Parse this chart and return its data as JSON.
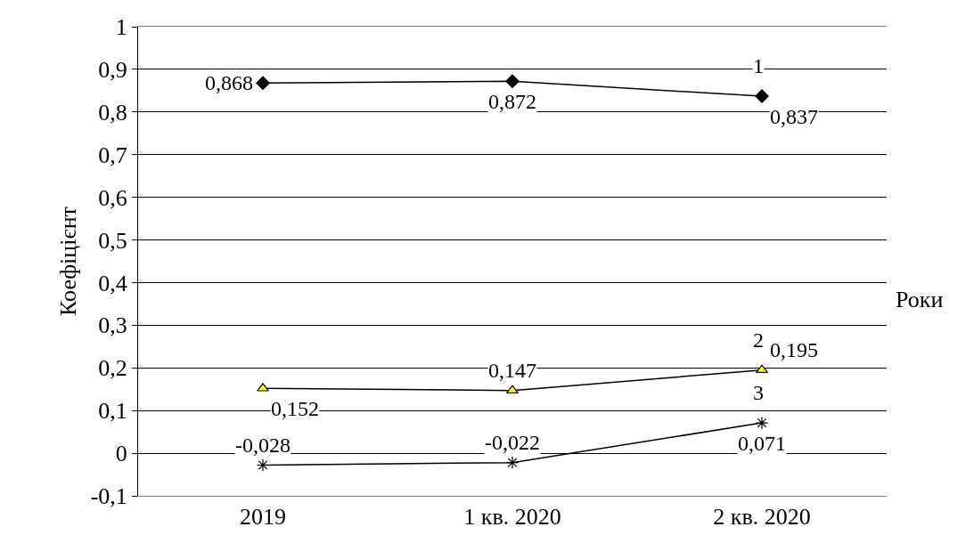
{
  "chart_data": {
    "type": "line",
    "ylabel": "Коефіцієнт",
    "xlabel": "Роки",
    "categories": [
      "2019",
      "1 кв. 2020",
      "2 кв. 2020"
    ],
    "series": [
      {
        "name": "1",
        "color": "#000000",
        "marker": "diamond",
        "values": [
          0.868,
          0.872,
          0.837
        ],
        "value_labels": [
          "0,868",
          "0,872",
          "0,837"
        ]
      },
      {
        "name": "2",
        "color": "#ffff00",
        "marker": "triangle",
        "values": [
          0.152,
          0.147,
          0.195
        ],
        "value_labels": [
          "0,152",
          "0,147",
          "0,195"
        ]
      },
      {
        "name": "3",
        "color": "#000000",
        "marker": "cross",
        "values": [
          -0.028,
          -0.022,
          0.071
        ],
        "value_labels": [
          "-0,028",
          "-0,022",
          "0,071"
        ]
      }
    ],
    "ylim": [
      -0.1,
      1
    ],
    "yticks": [
      {
        "value": -0.1,
        "label": "-0,1"
      },
      0,
      {
        "value": 0.1,
        "label": "0,1"
      },
      {
        "value": 0.2,
        "label": "0,2"
      },
      {
        "value": 0.3,
        "label": "0,3"
      },
      {
        "value": 0.4,
        "label": "0,4"
      },
      {
        "value": 0.5,
        "label": "0,5"
      },
      {
        "value": 0.6,
        "label": "0,6"
      },
      {
        "value": 0.7,
        "label": "0,7"
      },
      {
        "value": 0.8,
        "label": "0,8"
      },
      {
        "value": 0.9,
        "label": "0,9"
      },
      1
    ],
    "grid": "y",
    "legend": false,
    "line_style": "solid"
  }
}
